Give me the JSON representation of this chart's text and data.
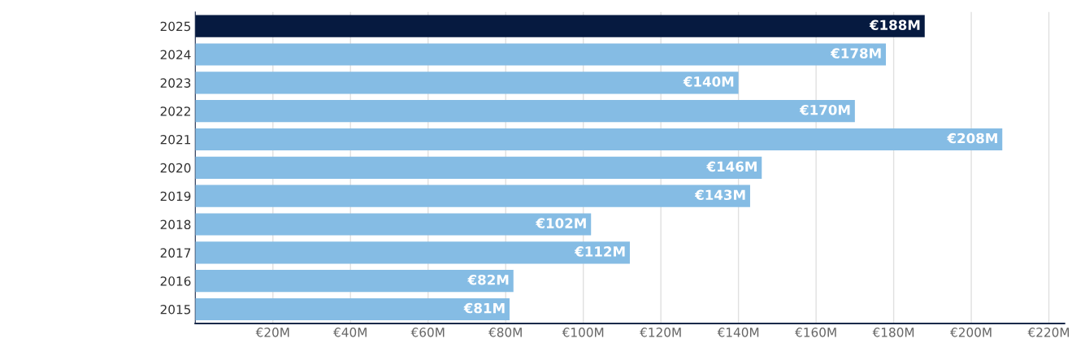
{
  "chart_data": {
    "type": "bar",
    "orientation": "horizontal",
    "categories": [
      "2025",
      "2024",
      "2023",
      "2022",
      "2021",
      "2020",
      "2019",
      "2018",
      "2017",
      "2016",
      "2015"
    ],
    "values": [
      188,
      178,
      140,
      170,
      208,
      146,
      143,
      102,
      112,
      82,
      81
    ],
    "colors": [
      "#061a40",
      "#85bce4",
      "#85bce4",
      "#85bce4",
      "#85bce4",
      "#85bce4",
      "#85bce4",
      "#85bce4",
      "#85bce4",
      "#85bce4",
      "#85bce4"
    ],
    "value_labels": [
      "€188M",
      "€178M",
      "€140M",
      "€170M",
      "€208M",
      "€146M",
      "€143M",
      "€102M",
      "€112M",
      "€82M",
      "€81M"
    ],
    "xlim": [
      0,
      224
    ],
    "xticks": [
      {
        "value": 20,
        "label": "€20M"
      },
      {
        "value": 40,
        "label": "€40M"
      },
      {
        "value": 60,
        "label": "€60M"
      },
      {
        "value": 80,
        "label": "€80M"
      },
      {
        "value": 100,
        "label": "€100M"
      },
      {
        "value": 120,
        "label": "€120M"
      },
      {
        "value": 140,
        "label": "€140M"
      },
      {
        "value": 160,
        "label": "€160M"
      },
      {
        "value": 180,
        "label": "€180M"
      },
      {
        "value": 200,
        "label": "€200M"
      },
      {
        "value": 220,
        "label": "€220M"
      }
    ],
    "grid": "x"
  }
}
